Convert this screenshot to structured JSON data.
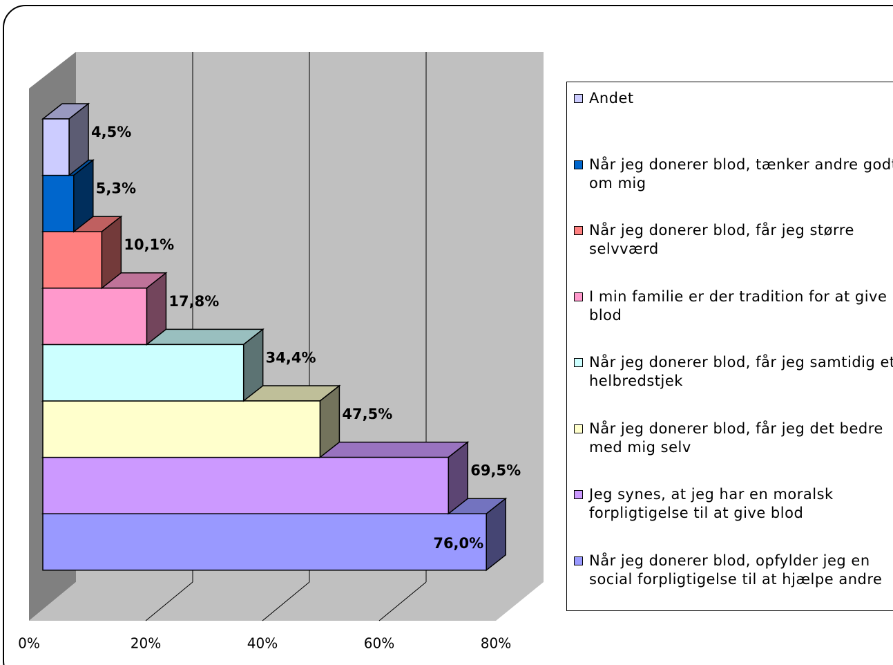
{
  "chart_data": {
    "type": "bar3d",
    "categories": [
      "Andet",
      "Når jeg donerer blod, tænker andre godt om mig",
      "Når jeg donerer blod, får jeg større selvværd",
      "I min familie er der tradition for at give blod",
      "Når jeg donerer blod, får jeg samtidig et helbredstjek",
      "Når jeg donerer blod, får jeg det bedre med mig selv",
      "Jeg synes, at jeg har en moralsk forpligtigelse til at give blod",
      "Når jeg donerer blod, opfylder jeg en social forpligtigelse til at hjælpe andre"
    ],
    "values": [
      4.5,
      5.3,
      10.1,
      17.8,
      34.4,
      47.5,
      69.5,
      76.0
    ],
    "value_labels": [
      "4,5%",
      "5,3%",
      "10,1%",
      "17,8%",
      "34,4%",
      "47,5%",
      "69,5%",
      "76,0%"
    ],
    "colors": [
      "#ccccff",
      "#0066cc",
      "#ff8080",
      "#ff99cc",
      "#ccffff",
      "#ffffcc",
      "#cc99ff",
      "#9999ff"
    ],
    "xlim": [
      0,
      80
    ],
    "xticks": [
      {
        "value": 0,
        "label": "0%"
      },
      {
        "value": 20,
        "label": "20%"
      },
      {
        "value": 40,
        "label": "40%"
      },
      {
        "value": 60,
        "label": "60%"
      },
      {
        "value": 80,
        "label": "80%"
      }
    ],
    "grid": true,
    "legend": "right"
  }
}
